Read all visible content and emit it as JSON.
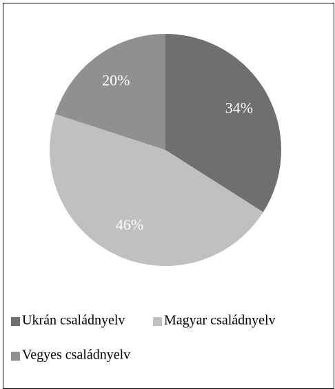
{
  "chart_data": {
    "type": "pie",
    "categories": [
      "Ukrán családnyelv",
      "Magyar családnyelv",
      "Vegyes családnyelv"
    ],
    "values": [
      34,
      46,
      20
    ],
    "value_labels": [
      "34%",
      "46%",
      "20%"
    ],
    "colors": [
      "#6f6f6f",
      "#c0c0c0",
      "#909090"
    ],
    "legend": "bottom"
  }
}
